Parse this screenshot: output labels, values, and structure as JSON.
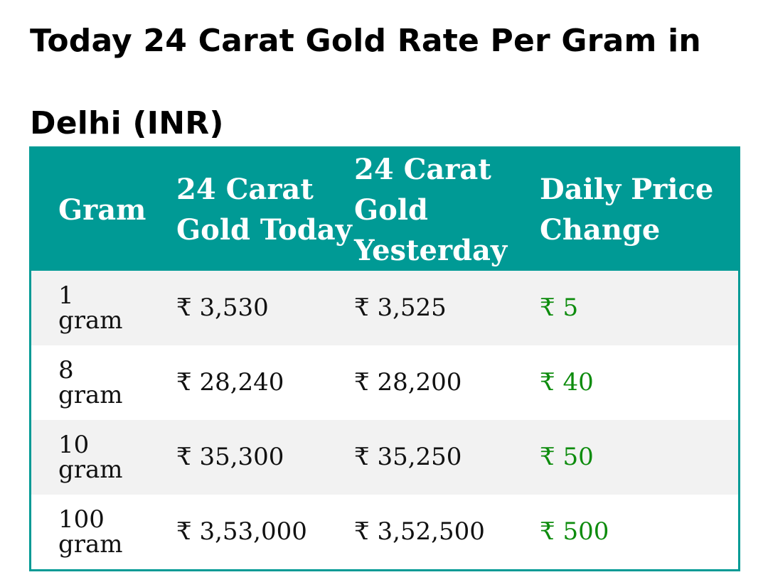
{
  "page": {
    "title": "Today 24 Carat Gold Rate Per Gram in Delhi (INR)"
  },
  "table": {
    "headers": [
      "Gram",
      "24 Carat Gold Today",
      "24 Carat Gold Yesterday",
      "Daily Price Change"
    ],
    "rows": [
      {
        "gram": "1 gram",
        "today": "₹ 3,530",
        "yesterday": "₹ 3,525",
        "change": "₹ 5"
      },
      {
        "gram": "8 gram",
        "today": "₹ 28,240",
        "yesterday": "₹ 28,200",
        "change": "₹ 40"
      },
      {
        "gram": "10 gram",
        "today": "₹ 35,300",
        "yesterday": "₹ 35,250",
        "change": "₹ 50"
      },
      {
        "gram": "100 gram",
        "today": "₹ 3,53,000",
        "yesterday": "₹ 3,52,500",
        "change": "₹ 500"
      }
    ]
  },
  "colors": {
    "header_bg": "#009a95",
    "header_text": "#ffffff",
    "row_alt_bg": "#f2f2f2",
    "price_change": "#0e8c0e"
  }
}
